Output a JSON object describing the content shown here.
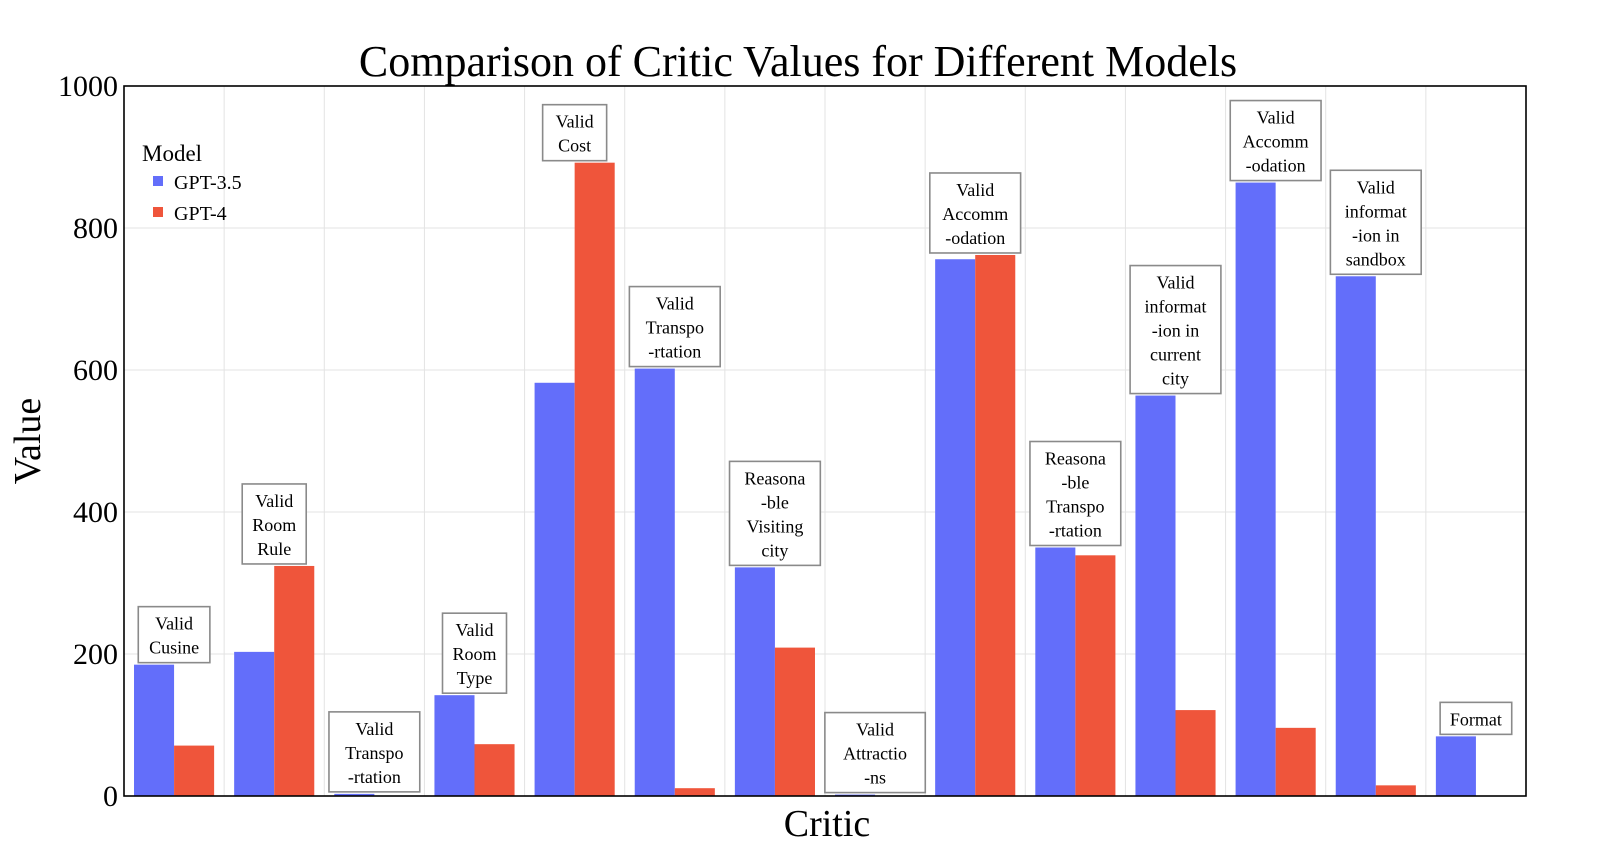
{
  "chart_data": {
    "type": "bar",
    "title": "Comparison of Critic Values for Different Models",
    "xlabel": "Critic",
    "ylabel": "Value",
    "ylim": [
      0,
      1000
    ],
    "yticks": [
      0,
      200,
      400,
      600,
      800,
      1000
    ],
    "grid": true,
    "legend": {
      "title": "Model",
      "placement": "top-left"
    },
    "categories": [
      [
        "Valid",
        "Cusine"
      ],
      [
        "Valid",
        "Room",
        "Rule"
      ],
      [
        "Valid",
        "Transpo",
        "-rtation"
      ],
      [
        "Valid",
        "Room",
        "Type"
      ],
      [
        "Valid",
        "Cost"
      ],
      [
        "Valid",
        "Transpo",
        "-rtation"
      ],
      [
        "Reasona",
        "-ble",
        "Visiting",
        "city"
      ],
      [
        "Valid",
        "Attractio",
        "-ns"
      ],
      [
        "Valid",
        "Accomm",
        "-odation"
      ],
      [
        "Reasona",
        "-ble",
        "Transpo",
        "-rtation"
      ],
      [
        "Valid",
        "informat",
        "-ion in",
        "current",
        "city"
      ],
      [
        "Valid",
        "Accomm",
        "-odation"
      ],
      [
        "Valid",
        "informat",
        "-ion in",
        "sandbox"
      ],
      [
        "Format"
      ]
    ],
    "series": [
      {
        "name": "GPT-3.5",
        "color": "#636efa",
        "values": [
          185,
          203,
          3,
          142,
          582,
          602,
          322,
          2,
          756,
          350,
          564,
          864,
          732,
          84
        ]
      },
      {
        "name": "GPT-4",
        "color": "#ef553b",
        "values": [
          71,
          324,
          0,
          73,
          892,
          11,
          209,
          0,
          762,
          339,
          121,
          96,
          15,
          0
        ]
      }
    ]
  }
}
